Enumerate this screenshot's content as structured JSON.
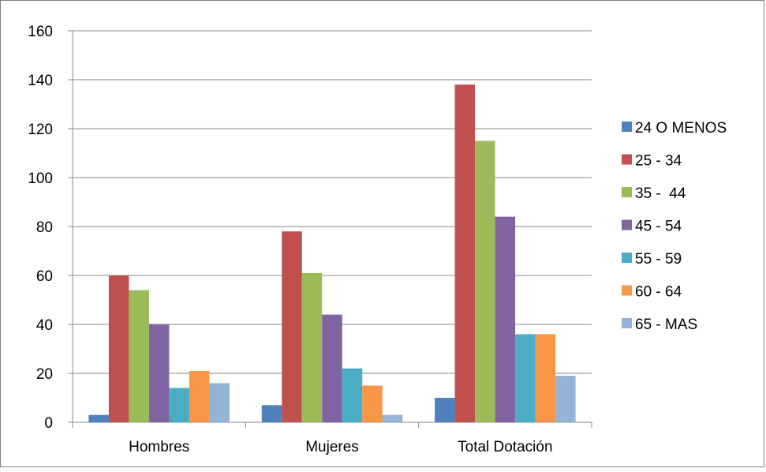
{
  "chart_data": {
    "type": "bar",
    "title": "",
    "xlabel": "",
    "ylabel": "",
    "categories": [
      "Hombres",
      "Mujeres",
      "Total Dotación"
    ],
    "series": [
      {
        "name": "24 O MENOS",
        "color": "#4f81bd",
        "values": [
          3,
          7,
          10
        ]
      },
      {
        "name": "25 - 34",
        "color": "#c0504d",
        "values": [
          60,
          78,
          138
        ]
      },
      {
        "name": "35 -  44",
        "color": "#9bbb59",
        "values": [
          54,
          61,
          115
        ]
      },
      {
        "name": "45 - 54",
        "color": "#8064a2",
        "values": [
          40,
          44,
          84
        ]
      },
      {
        "name": "55 - 59",
        "color": "#4bacc6",
        "values": [
          14,
          22,
          36
        ]
      },
      {
        "name": "60 - 64",
        "color": "#f79646",
        "values": [
          21,
          15,
          36
        ]
      },
      {
        "name": "65 - MAS",
        "color": "#95b3d7",
        "values": [
          16,
          3,
          19
        ]
      }
    ],
    "ylim": [
      0,
      160
    ],
    "yticks": [
      0,
      20,
      40,
      60,
      80,
      100,
      120,
      140,
      160
    ],
    "grid": true,
    "legend": "right"
  }
}
